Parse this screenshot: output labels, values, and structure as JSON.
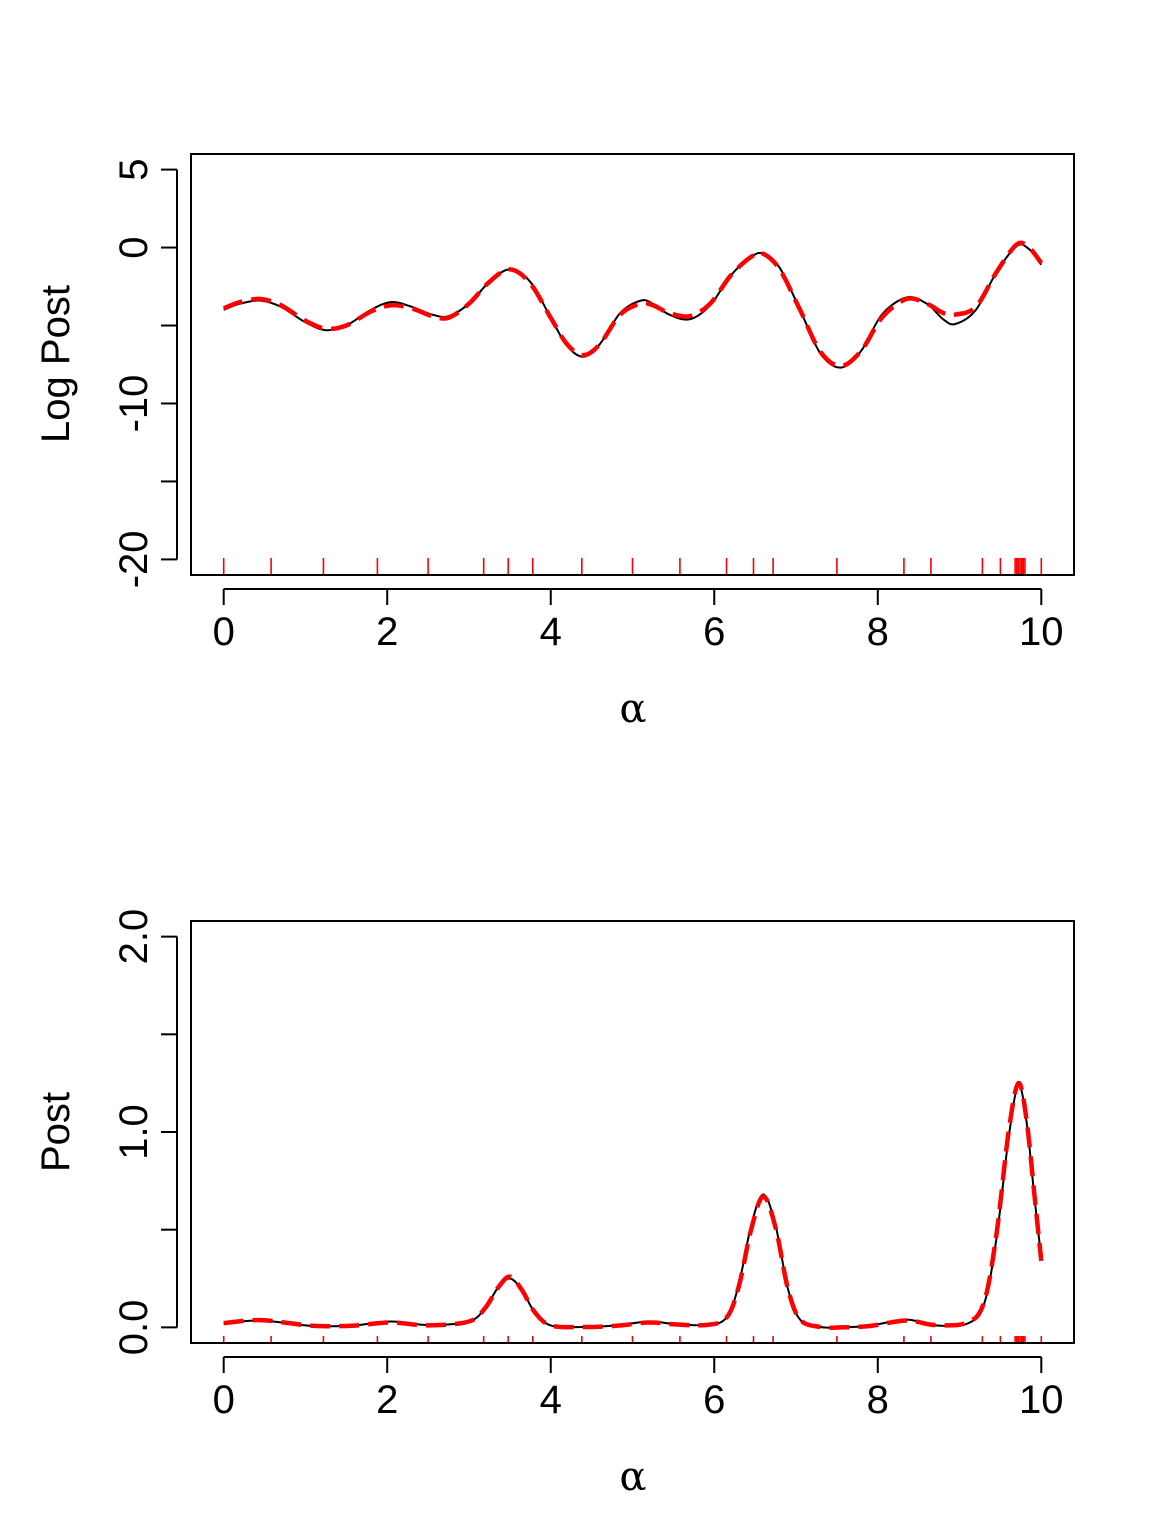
{
  "chart_data": [
    {
      "type": "line",
      "title": "",
      "xlabel": "α",
      "ylabel": "Log Post",
      "xlim": [
        -0.4,
        10.4
      ],
      "ylim": [
        -21,
        6
      ],
      "xticks": [
        0,
        2,
        4,
        6,
        8,
        10
      ],
      "xtick_labels": [
        "0",
        "2",
        "4",
        "6",
        "8",
        "10"
      ],
      "yticks": [
        -20,
        -15,
        -10,
        -5,
        0,
        5
      ],
      "ytick_labels": [
        "-20",
        "",
        "-10",
        "",
        "0",
        "5"
      ],
      "grid": false,
      "series": [
        {
          "style": "solid",
          "color": "#000000",
          "x": [
            0,
            0.2,
            0.45,
            0.7,
            1.0,
            1.25,
            1.5,
            1.8,
            2.05,
            2.3,
            2.55,
            2.75,
            3.0,
            3.25,
            3.5,
            3.75,
            4.0,
            4.2,
            4.4,
            4.6,
            4.85,
            5.1,
            5.25,
            5.45,
            5.7,
            5.95,
            6.2,
            6.45,
            6.6,
            6.8,
            7.05,
            7.3,
            7.55,
            7.8,
            8.05,
            8.35,
            8.6,
            8.8,
            8.95,
            9.2,
            9.45,
            9.7,
            9.85,
            10.0
          ],
          "y": [
            -4.0,
            -3.6,
            -3.4,
            -3.8,
            -4.8,
            -5.3,
            -5.0,
            -4.0,
            -3.5,
            -3.8,
            -4.3,
            -4.4,
            -3.6,
            -2.2,
            -1.4,
            -2.2,
            -4.5,
            -6.3,
            -7.0,
            -6.2,
            -4.2,
            -3.4,
            -3.6,
            -4.3,
            -4.6,
            -3.7,
            -1.8,
            -0.6,
            -0.4,
            -1.3,
            -4.0,
            -6.8,
            -7.7,
            -6.6,
            -4.3,
            -3.2,
            -3.6,
            -4.6,
            -4.9,
            -4.0,
            -1.6,
            0.1,
            -0.1,
            -1.1
          ]
        },
        {
          "style": "dashed",
          "color": "#ff0000",
          "x": [
            0,
            0.2,
            0.45,
            0.7,
            1.0,
            1.25,
            1.5,
            1.8,
            2.05,
            2.3,
            2.55,
            2.75,
            3.0,
            3.25,
            3.5,
            3.75,
            4.0,
            4.2,
            4.4,
            4.6,
            4.85,
            5.1,
            5.25,
            5.45,
            5.7,
            5.95,
            6.2,
            6.45,
            6.6,
            6.8,
            7.05,
            7.3,
            7.55,
            7.8,
            8.05,
            8.35,
            8.6,
            8.8,
            8.95,
            9.2,
            9.45,
            9.7,
            9.85,
            10.0
          ],
          "y": [
            -3.9,
            -3.5,
            -3.3,
            -3.7,
            -4.7,
            -5.2,
            -5.0,
            -4.1,
            -3.7,
            -3.9,
            -4.4,
            -4.5,
            -3.6,
            -2.2,
            -1.4,
            -2.3,
            -4.5,
            -6.2,
            -6.9,
            -6.2,
            -4.3,
            -3.6,
            -3.7,
            -4.2,
            -4.4,
            -3.6,
            -1.8,
            -0.6,
            -0.4,
            -1.4,
            -4.0,
            -6.7,
            -7.6,
            -6.6,
            -4.5,
            -3.3,
            -3.6,
            -4.2,
            -4.3,
            -3.8,
            -1.6,
            0.2,
            0.0,
            -1.0
          ]
        }
      ],
      "rug_x": [
        0,
        0.58,
        1.22,
        1.88,
        2.5,
        3.18,
        3.48,
        3.78,
        4.38,
        5.0,
        5.58,
        6.15,
        6.48,
        6.72,
        7.5,
        8.32,
        8.65,
        9.28,
        9.5,
        9.68,
        9.7,
        9.72,
        9.74,
        9.76,
        9.78,
        9.8,
        10.0
      ],
      "rug_color": "#ff0000"
    },
    {
      "type": "line",
      "title": "",
      "xlabel": "α",
      "ylabel": "Post",
      "xlim": [
        -0.4,
        10.4
      ],
      "ylim": [
        -0.08,
        2.08
      ],
      "xticks": [
        0,
        2,
        4,
        6,
        8,
        10
      ],
      "xtick_labels": [
        "0",
        "2",
        "4",
        "6",
        "8",
        "10"
      ],
      "yticks": [
        0.0,
        0.5,
        1.0,
        1.5,
        2.0
      ],
      "ytick_labels": [
        "0.0",
        "",
        "1.0",
        "",
        "2.0"
      ],
      "grid": false,
      "series": [
        {
          "style": "solid",
          "color": "#000000",
          "x": [
            0,
            0.45,
            1.0,
            1.25,
            1.6,
            2.05,
            2.5,
            3.0,
            3.2,
            3.35,
            3.5,
            3.65,
            3.8,
            4.0,
            4.4,
            4.8,
            5.2,
            5.5,
            5.9,
            6.15,
            6.3,
            6.45,
            6.6,
            6.75,
            6.9,
            7.05,
            7.3,
            7.55,
            7.9,
            8.35,
            8.7,
            9.1,
            9.3,
            9.45,
            9.6,
            9.72,
            9.82,
            9.92,
            10.0
          ],
          "y": [
            0.02,
            0.035,
            0.01,
            0.005,
            0.01,
            0.03,
            0.012,
            0.03,
            0.1,
            0.2,
            0.25,
            0.19,
            0.08,
            0.01,
            0.002,
            0.01,
            0.03,
            0.018,
            0.012,
            0.05,
            0.22,
            0.52,
            0.68,
            0.52,
            0.2,
            0.04,
            0.002,
            0.0,
            0.008,
            0.04,
            0.01,
            0.02,
            0.12,
            0.45,
            0.97,
            1.24,
            1.05,
            0.65,
            0.35
          ]
        },
        {
          "style": "dashed",
          "color": "#ff0000",
          "x": [
            0,
            0.45,
            1.0,
            1.25,
            1.6,
            2.05,
            2.5,
            3.0,
            3.2,
            3.35,
            3.5,
            3.65,
            3.8,
            4.0,
            4.4,
            4.8,
            5.2,
            5.5,
            5.9,
            6.15,
            6.3,
            6.45,
            6.6,
            6.75,
            6.9,
            7.05,
            7.3,
            7.55,
            7.9,
            8.35,
            8.7,
            9.1,
            9.3,
            9.45,
            9.6,
            9.72,
            9.82,
            9.92,
            10.0
          ],
          "y": [
            0.022,
            0.037,
            0.011,
            0.006,
            0.009,
            0.025,
            0.01,
            0.03,
            0.1,
            0.2,
            0.26,
            0.19,
            0.08,
            0.01,
            0.002,
            0.008,
            0.025,
            0.016,
            0.012,
            0.05,
            0.21,
            0.5,
            0.67,
            0.51,
            0.2,
            0.04,
            0.002,
            0.0,
            0.007,
            0.035,
            0.012,
            0.025,
            0.13,
            0.47,
            1.0,
            1.25,
            1.06,
            0.66,
            0.34
          ]
        }
      ],
      "rug_x": [
        0,
        0.58,
        1.22,
        1.88,
        2.5,
        3.18,
        3.48,
        3.78,
        4.38,
        5.0,
        5.58,
        6.15,
        6.48,
        6.72,
        7.5,
        8.32,
        8.65,
        9.28,
        9.5,
        9.68,
        9.7,
        9.72,
        9.74,
        9.76,
        9.78,
        9.8,
        10.0
      ],
      "rug_color": "#ff0000"
    }
  ]
}
